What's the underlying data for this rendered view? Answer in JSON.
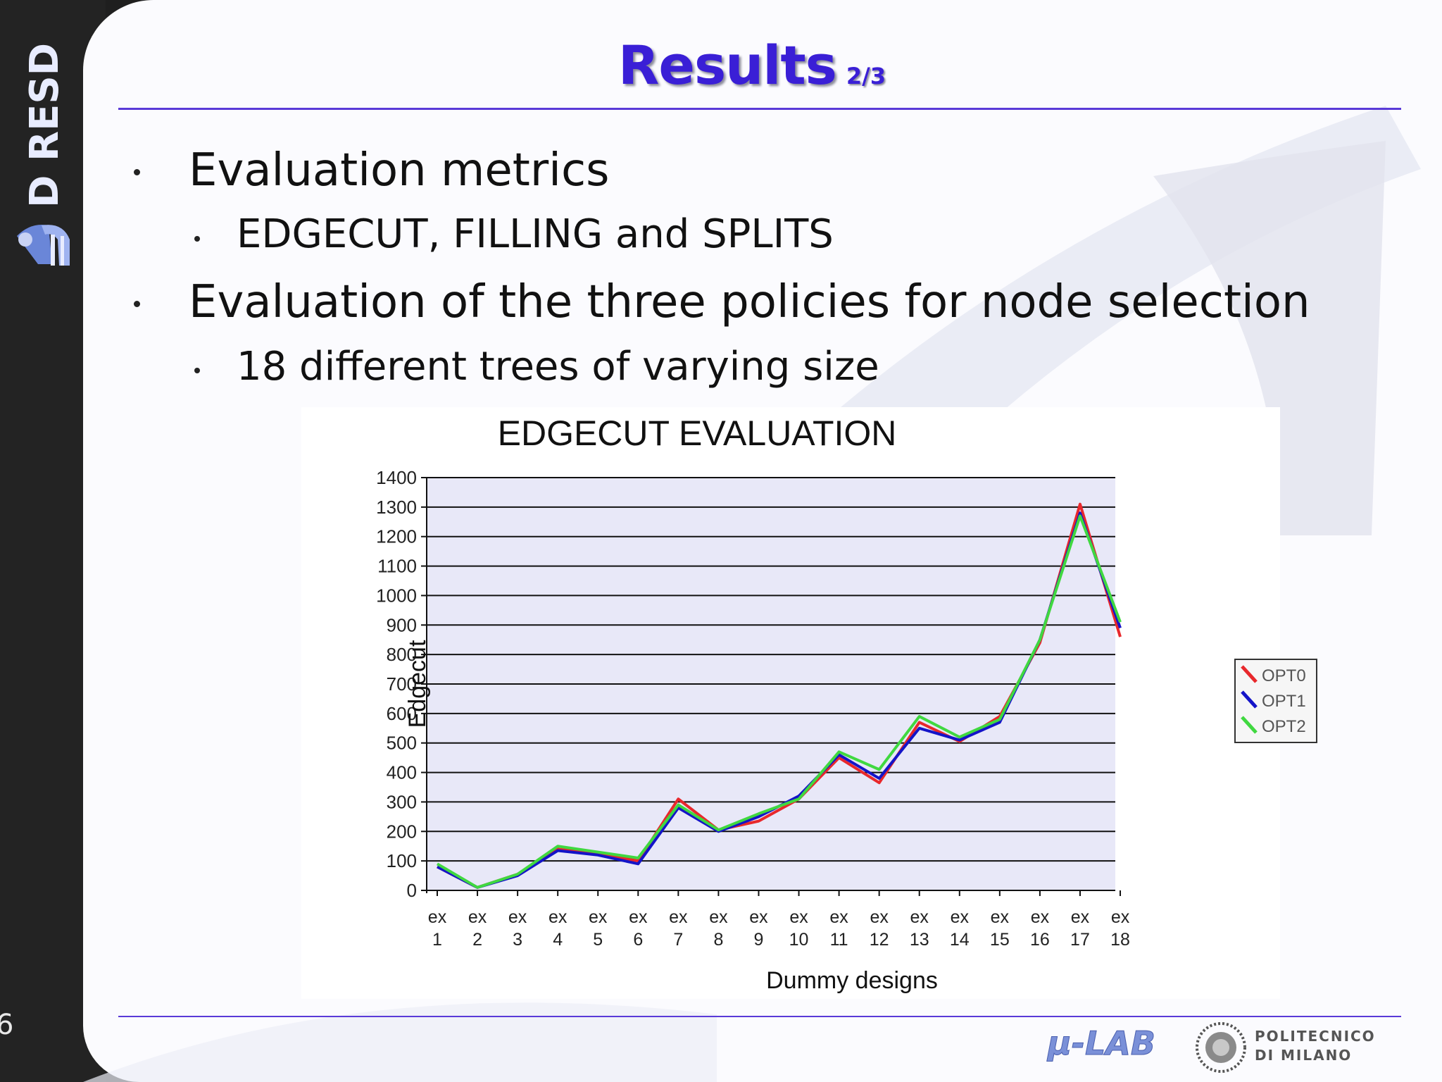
{
  "page_number": "6",
  "sidebar": {
    "logo_text": "D RESD"
  },
  "slide": {
    "title": "Results",
    "title_suffix": "2/3",
    "bullets": [
      {
        "text": "Evaluation metrics",
        "sub": [
          "EDGECUT, FILLING and SPLITS"
        ]
      },
      {
        "text": "Evaluation of the three policies for node selection",
        "sub": [
          "18 different trees of varying size"
        ]
      }
    ]
  },
  "footer": {
    "lab_logo": "μ-LAB",
    "university_line1": "POLITECNICO",
    "university_line2": "DI MILANO"
  },
  "colors": {
    "title": "#3a1fd6",
    "rule": "#5a3ad8",
    "plot_bg": "#e8e8f8",
    "opt0": "#e8282c",
    "opt1": "#1414c8",
    "opt2": "#40d840"
  },
  "chart_data": {
    "type": "line",
    "title": "EDGECUT EVALUATION",
    "xlabel": "Dummy designs",
    "ylabel": "Edgecut",
    "ylim": [
      0,
      1400
    ],
    "yticks": [
      0,
      100,
      200,
      300,
      400,
      500,
      600,
      700,
      800,
      900,
      1000,
      1100,
      1200,
      1300,
      1400
    ],
    "categories": [
      "ex 1",
      "ex 2",
      "ex 3",
      "ex 4",
      "ex 5",
      "ex 6",
      "ex 7",
      "ex 8",
      "ex 9",
      "ex 10",
      "ex 11",
      "ex 12",
      "ex 13",
      "ex 14",
      "ex 15",
      "ex 16",
      "ex 17",
      "ex 18"
    ],
    "legend_position": "right",
    "grid": true,
    "series": [
      {
        "name": "OPT0",
        "color": "#e8282c",
        "values": [
          80,
          10,
          55,
          140,
          125,
          100,
          310,
          205,
          235,
          310,
          450,
          365,
          570,
          505,
          590,
          840,
          1310,
          860
        ]
      },
      {
        "name": "OPT1",
        "color": "#1414c8",
        "values": [
          80,
          10,
          50,
          135,
          120,
          90,
          280,
          200,
          250,
          320,
          460,
          380,
          550,
          510,
          570,
          850,
          1280,
          890
        ]
      },
      {
        "name": "OPT2",
        "color": "#40d840",
        "values": [
          90,
          10,
          55,
          150,
          130,
          110,
          290,
          205,
          260,
          310,
          470,
          410,
          590,
          520,
          580,
          850,
          1270,
          910
        ]
      }
    ]
  }
}
